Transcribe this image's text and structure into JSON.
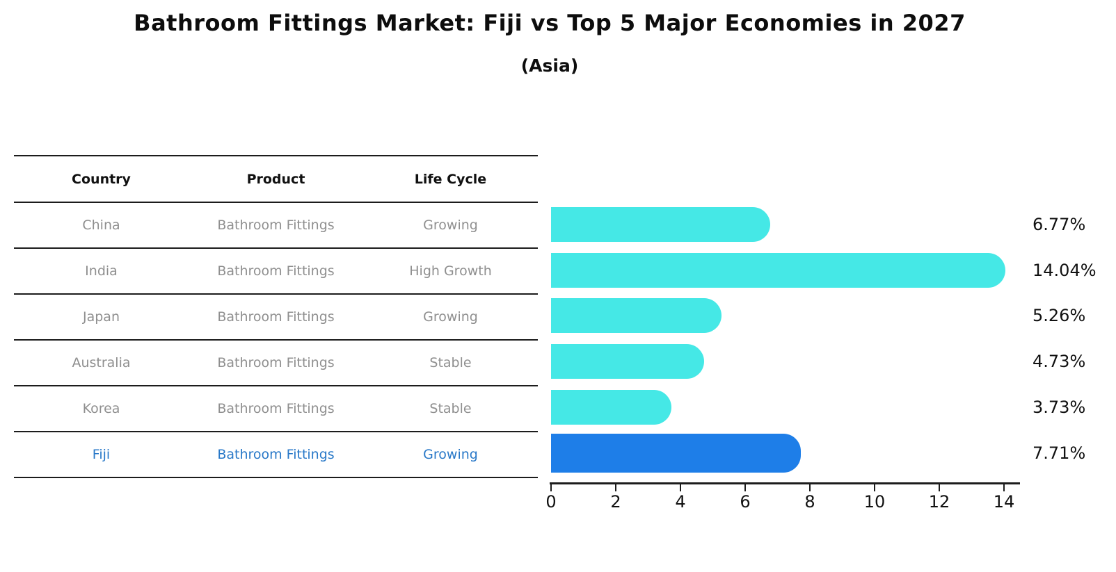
{
  "title": "Bathroom Fittings Market: Fiji vs Top 5 Major Economies in 2027",
  "subtitle": "(Asia)",
  "table": {
    "headers": [
      "Country",
      "Product",
      "Life Cycle"
    ],
    "rows": [
      {
        "country": "China",
        "product": "Bathroom Fittings",
        "life_cycle": "Growing",
        "highlight": false
      },
      {
        "country": "India",
        "product": "Bathroom Fittings",
        "life_cycle": "High Growth",
        "highlight": false
      },
      {
        "country": "Japan",
        "product": "Bathroom Fittings",
        "life_cycle": "Growing",
        "highlight": false
      },
      {
        "country": "Australia",
        "product": "Bathroom Fittings",
        "life_cycle": "Stable",
        "highlight": false
      },
      {
        "country": "Korea",
        "product": "Bathroom Fittings",
        "life_cycle": "Stable",
        "highlight": false
      },
      {
        "country": "Fiji",
        "product": "Bathroom Fittings",
        "life_cycle": "Growing",
        "highlight": true
      }
    ]
  },
  "chart_data": {
    "type": "bar",
    "orientation": "horizontal",
    "categories": [
      "China",
      "India",
      "Japan",
      "Australia",
      "Korea",
      "Fiji"
    ],
    "values": [
      6.77,
      14.04,
      5.26,
      4.73,
      3.73,
      7.71
    ],
    "value_labels": [
      "6.77%",
      "14.04%",
      "5.26%",
      "4.73%",
      "3.73%",
      "7.71%"
    ],
    "highlight_index": 5,
    "xticks": [
      0,
      2,
      4,
      6,
      8,
      10,
      12,
      14
    ],
    "xtick_labels": [
      "0",
      "2",
      "4",
      "6",
      "8",
      "10",
      "12",
      "14"
    ],
    "xlim": [
      0,
      14.7
    ],
    "grid": false,
    "legend": false,
    "title": "Bathroom Fittings Market: Fiji vs Top 5 Major Economies in 2027",
    "subtitle": "(Asia)"
  },
  "colors": {
    "bar": "#45e8e6",
    "highlight_bar": "#1e7ee8",
    "highlight_text": "#2878c8",
    "table_text": "#8f8f8f",
    "header_text": "#111111",
    "line": "#1c1c1c"
  }
}
